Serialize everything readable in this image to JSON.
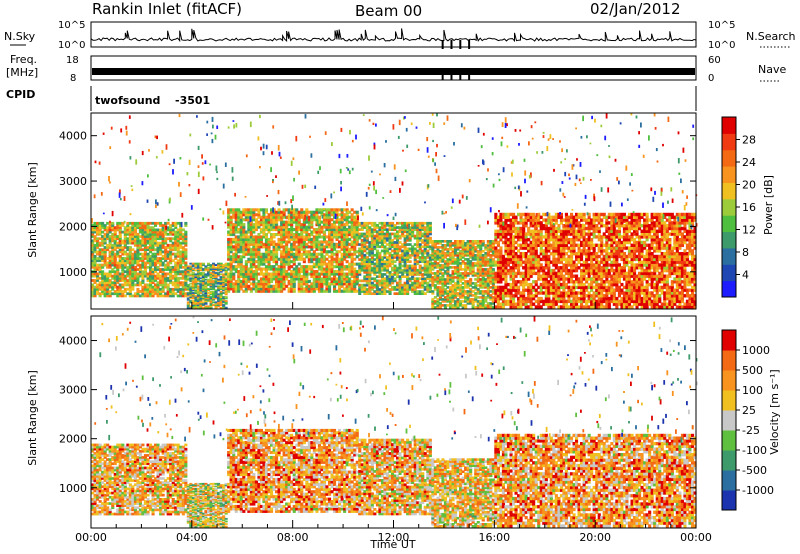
{
  "header": {
    "station": "Rankin Inlet (fitACF)",
    "beam": "Beam 00",
    "date": "02/Jan/2012"
  },
  "noise_panel": {
    "left_label": "N.Sky",
    "left_ticks": [
      "10^5",
      "10^0"
    ],
    "right_label": "N.Search",
    "right_ticks": [
      "10^5",
      "10^0"
    ]
  },
  "freq_panel": {
    "left_label_top": "Freq.",
    "left_label_bottom": "[MHz]",
    "left_ticks": [
      "18",
      "8"
    ],
    "right_label": "Nave",
    "right_ticks": [
      "60",
      "0"
    ]
  },
  "cpid_panel": {
    "label": "CPID",
    "program": "twofsound",
    "id": "-3501"
  },
  "chart_data": [
    {
      "type": "heatmap",
      "name": "power-panel",
      "ylabel": "Slant Range [km]",
      "yticks": [
        "1000",
        "2000",
        "3000",
        "4000"
      ],
      "ylim": [
        180,
        4500
      ],
      "xlim_hours": [
        0,
        24
      ],
      "colorbar": {
        "label": "Power [dB]",
        "ticks": [
          "4",
          "8",
          "12",
          "16",
          "20",
          "24",
          "28"
        ],
        "colors": [
          "#1c1cff",
          "#1f47b4",
          "#2a6fa0",
          "#3d9a6a",
          "#4fbf3f",
          "#9ccc3a",
          "#f0c020",
          "#f7931e",
          "#f46a14",
          "#ef3a12",
          "#e00000"
        ]
      },
      "bands": [
        {
          "t0": 0.0,
          "t1": 3.8,
          "r0": 450,
          "r1": 2100,
          "level": 0.55
        },
        {
          "t0": 3.8,
          "t1": 5.4,
          "r0": 200,
          "r1": 1200,
          "level": 0.45
        },
        {
          "t0": 5.4,
          "t1": 10.6,
          "r0": 550,
          "r1": 2400,
          "level": 0.58
        },
        {
          "t0": 10.6,
          "t1": 13.5,
          "r0": 500,
          "r1": 2100,
          "level": 0.5
        },
        {
          "t0": 13.5,
          "t1": 16.0,
          "r0": 200,
          "r1": 1700,
          "level": 0.55
        },
        {
          "t0": 16.0,
          "t1": 24.0,
          "r0": 200,
          "r1": 2300,
          "level": 0.8
        }
      ]
    },
    {
      "type": "heatmap",
      "name": "velocity-panel",
      "ylabel": "Slant Range [km]",
      "yticks": [
        "1000",
        "2000",
        "3000",
        "4000"
      ],
      "ylim": [
        180,
        4500
      ],
      "xlim_hours": [
        0,
        24
      ],
      "xticks": [
        "00:00",
        "04:00",
        "08:00",
        "12:00",
        "16:00",
        "20:00",
        "00:00"
      ],
      "xlabel": "Time UT",
      "colorbar": {
        "label": "Velocity [m s⁻¹]",
        "ticks": [
          "1000",
          "500",
          "100",
          "25",
          "-25",
          "-100",
          "-500",
          "-1000"
        ],
        "colors": [
          "#1c33b0",
          "#2a6fa0",
          "#3d9a6a",
          "#5fc040",
          "#c8c8c8",
          "#f0c020",
          "#f7931e",
          "#f46a14",
          "#e00000"
        ]
      },
      "bands": [
        {
          "t0": 0.0,
          "t1": 3.8,
          "r0": 450,
          "r1": 1900,
          "level": 0.65
        },
        {
          "t0": 3.8,
          "t1": 5.4,
          "r0": 200,
          "r1": 1100,
          "level": 0.55
        },
        {
          "t0": 5.4,
          "t1": 10.6,
          "r0": 500,
          "r1": 2200,
          "level": 0.7
        },
        {
          "t0": 10.6,
          "t1": 13.5,
          "r0": 450,
          "r1": 2000,
          "level": 0.65
        },
        {
          "t0": 13.5,
          "t1": 16.0,
          "r0": 200,
          "r1": 1600,
          "level": 0.6
        },
        {
          "t0": 16.0,
          "t1": 24.0,
          "r0": 200,
          "r1": 2100,
          "level": 0.7
        }
      ]
    }
  ]
}
